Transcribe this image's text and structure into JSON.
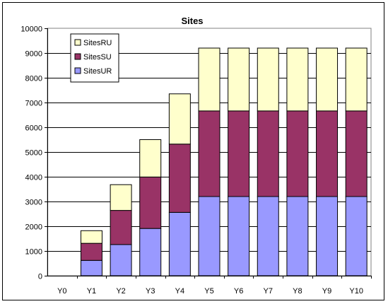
{
  "chart_data": {
    "type": "bar",
    "stacked": true,
    "title": "Sites",
    "xlabel": "",
    "ylabel": "",
    "categories": [
      "Y0",
      "Y1",
      "Y2",
      "Y3",
      "Y4",
      "Y5",
      "Y6",
      "Y7",
      "Y8",
      "Y9",
      "Y10"
    ],
    "series": [
      {
        "name": "SitesUR",
        "color": "#9999FF",
        "values": [
          0,
          620,
          1260,
          1910,
          2560,
          3200,
          3200,
          3200,
          3200,
          3200,
          3200
        ]
      },
      {
        "name": "SitesSU",
        "color": "#993366",
        "values": [
          0,
          690,
          1380,
          2080,
          2760,
          3460,
          3460,
          3460,
          3460,
          3460,
          3460
        ]
      },
      {
        "name": "SitesRU",
        "color": "#FFFFCC",
        "values": [
          0,
          510,
          1040,
          1510,
          2030,
          2540,
          2540,
          2540,
          2540,
          2540,
          2540
        ]
      }
    ],
    "legend_order": [
      "SitesRU",
      "SitesSU",
      "SitesUR"
    ],
    "yticks": [
      0,
      1000,
      2000,
      3000,
      4000,
      5000,
      6000,
      7000,
      8000,
      9000,
      10000
    ],
    "ylim": [
      0,
      10000
    ],
    "grid": true,
    "legend_position": "top-left"
  }
}
